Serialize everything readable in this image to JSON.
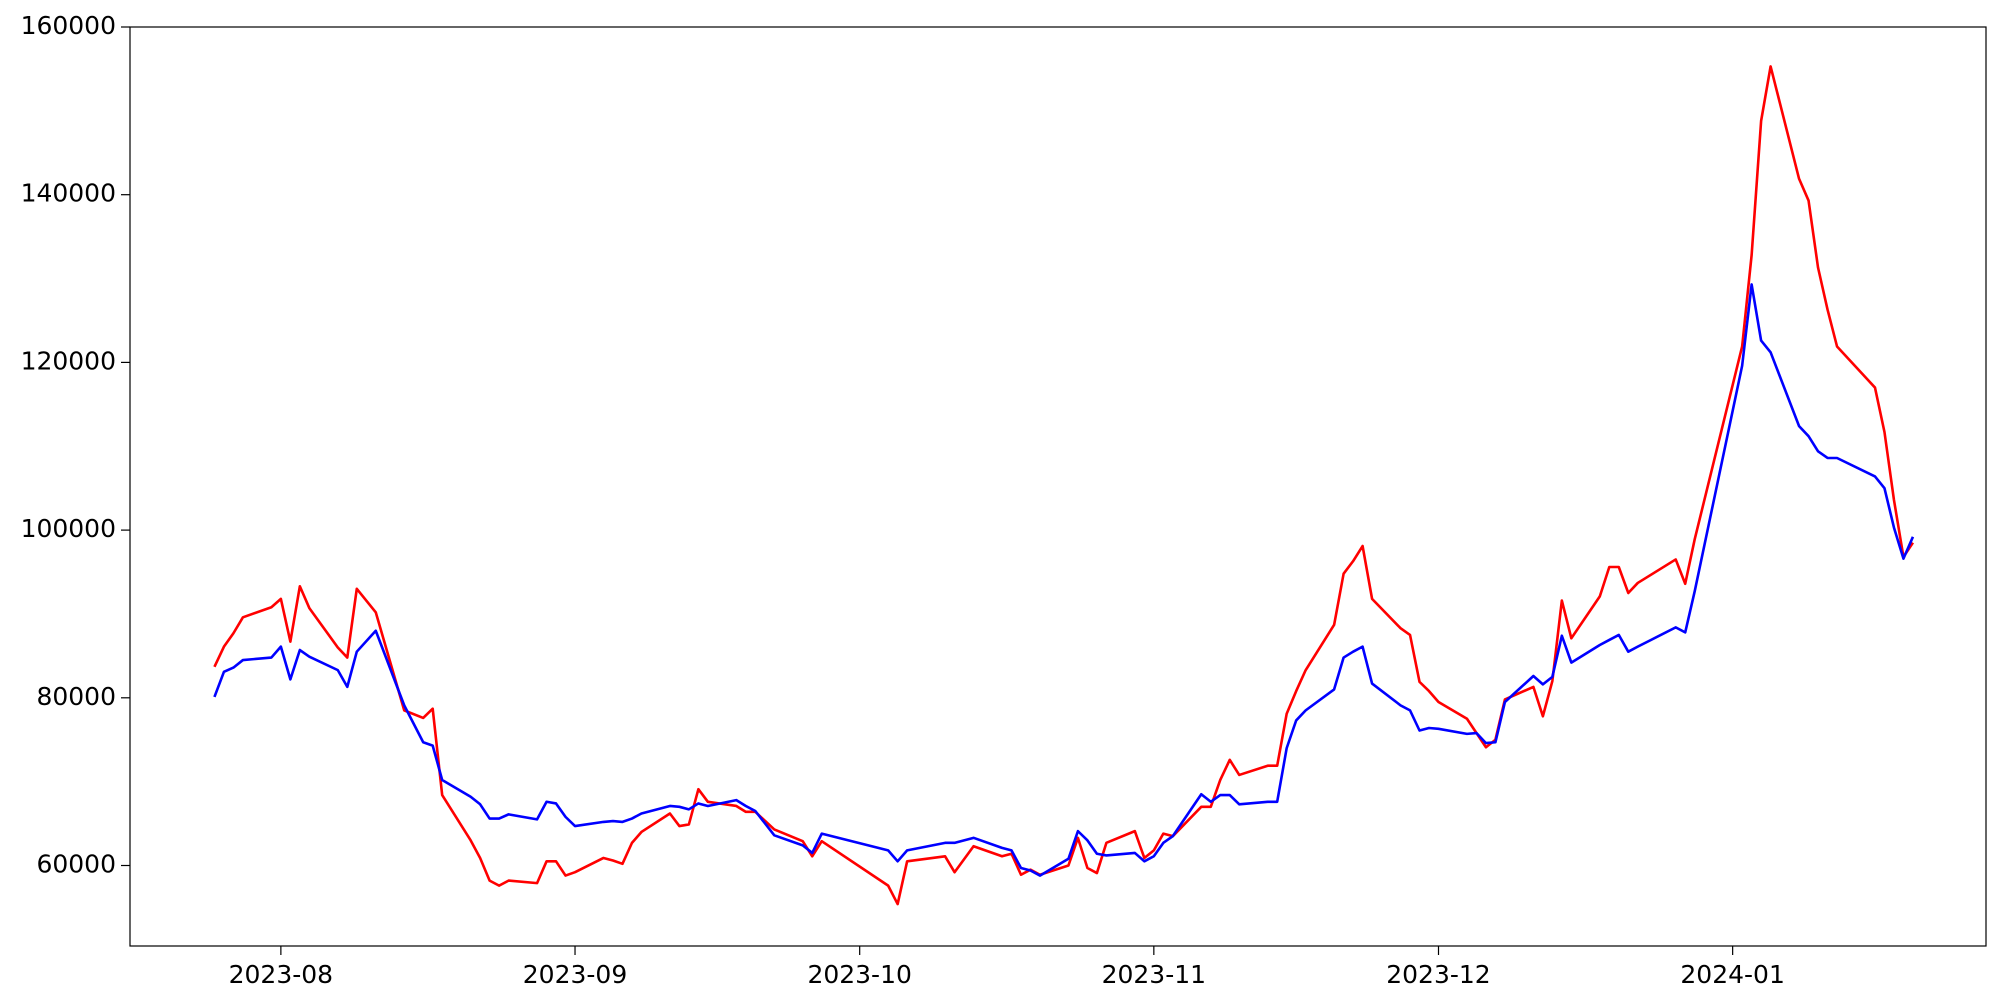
{
  "chart_data": {
    "type": "line",
    "x": [
      19563,
      19564,
      19565,
      19566,
      19569,
      19570,
      19571,
      19572,
      19573,
      19576,
      19577,
      19578,
      19580,
      19583,
      19585,
      19586,
      19587,
      19590,
      19591,
      19592,
      19593,
      19594,
      19597,
      19598,
      19599,
      19600,
      19601,
      19604,
      19605,
      19606,
      19607,
      19608,
      19611,
      19612,
      19613,
      19614,
      19615,
      19618,
      19619,
      19620,
      19622,
      19625,
      19626,
      19627,
      19634,
      19635,
      19636,
      19640,
      19641,
      19643,
      19646,
      19647,
      19648,
      19649,
      19650,
      19653,
      19654,
      19655,
      19656,
      19657,
      19660,
      19661,
      19662,
      19663,
      19664,
      19667,
      19668,
      19669,
      19670,
      19671,
      19674,
      19675,
      19676,
      19677,
      19678,
      19681,
      19682,
      19683,
      19684,
      19685,
      19688,
      19689,
      19690,
      19691,
      19692,
      19695,
      19696,
      19697,
      19698,
      19699,
      19702,
      19703,
      19704,
      19705,
      19706,
      19709,
      19710,
      19711,
      19712,
      19713,
      19717,
      19718,
      19719,
      19724,
      19725,
      19726,
      19727,
      19730,
      19731,
      19732,
      19733,
      19734,
      19738,
      19739,
      19740,
      19741,
      19742
    ],
    "series": [
      {
        "color": "#ff0000",
        "values": [
          83700,
          86100,
          87700,
          89600,
          90800,
          91800,
          86700,
          93300,
          90700,
          86000,
          84800,
          93000,
          90200,
          78500,
          77600,
          78700,
          68400,
          63000,
          60900,
          58200,
          57600,
          58200,
          57900,
          60500,
          60500,
          58800,
          59200,
          60900,
          60600,
          60200,
          62700,
          64000,
          66200,
          64700,
          64900,
          69100,
          67600,
          67100,
          66400,
          66400,
          64300,
          62900,
          61100,
          62900,
          57600,
          55400,
          60500,
          61100,
          59200,
          62300,
          61100,
          61400,
          58900,
          59500,
          58900,
          60000,
          63300,
          59700,
          59100,
          62700,
          64100,
          60900,
          61800,
          63800,
          63500,
          67000,
          67000,
          70200,
          72600,
          70800,
          71900,
          71900,
          78100,
          80800,
          83300,
          88700,
          94800,
          96300,
          98100,
          91800,
          88300,
          87500,
          81900,
          80800,
          79500,
          77500,
          75800,
          74100,
          75000,
          79800,
          81300,
          77800,
          82000,
          91600,
          87100,
          92100,
          95600,
          95600,
          92500,
          93700,
          96500,
          93600,
          98900,
          121900,
          132800,
          148800,
          155300,
          141900,
          139300,
          131300,
          126300,
          121900,
          117000,
          111700,
          103600,
          96800,
          98500
        ]
      },
      {
        "color": "#0000ff",
        "values": [
          80100,
          83100,
          83600,
          84500,
          84800,
          86100,
          82200,
          85700,
          84900,
          83300,
          81300,
          85500,
          88000,
          79100,
          74700,
          74300,
          70200,
          68200,
          67300,
          65600,
          65600,
          66100,
          65500,
          67600,
          67400,
          65800,
          64700,
          65200,
          65300,
          65200,
          65600,
          66200,
          67100,
          67000,
          66700,
          67400,
          67100,
          67800,
          67100,
          66500,
          63600,
          62400,
          61500,
          63800,
          61800,
          60500,
          61800,
          62700,
          62700,
          63300,
          62100,
          61800,
          59700,
          59400,
          58800,
          60800,
          64100,
          63000,
          61400,
          61200,
          61500,
          60500,
          61100,
          62700,
          63500,
          68500,
          67600,
          68400,
          68400,
          67300,
          67600,
          67600,
          74000,
          77300,
          78500,
          81000,
          84800,
          85500,
          86100,
          81700,
          79100,
          78500,
          76100,
          76400,
          76300,
          75700,
          75800,
          74600,
          74700,
          79500,
          82600,
          81600,
          82500,
          87400,
          84200,
          86300,
          86900,
          87500,
          85500,
          86100,
          88400,
          87800,
          92700,
          119600,
          129300,
          122600,
          121200,
          112400,
          111200,
          109400,
          108600,
          108600,
          106400,
          105000,
          100300,
          96600,
          99200
        ]
      }
    ],
    "xlim": [
      19554.1,
      19749.7
    ],
    "xticks": [
      {
        "value": 19570,
        "label": "2023-08"
      },
      {
        "value": 19601,
        "label": "2023-09"
      },
      {
        "value": 19631,
        "label": "2023-10"
      },
      {
        "value": 19662,
        "label": "2023-11"
      },
      {
        "value": 19692,
        "label": "2023-12"
      },
      {
        "value": 19723,
        "label": "2024-01"
      }
    ],
    "ylim": [
      50400,
      160000
    ],
    "yticks": [
      60000,
      80000,
      100000,
      120000,
      140000,
      160000
    ],
    "grid": false
  }
}
